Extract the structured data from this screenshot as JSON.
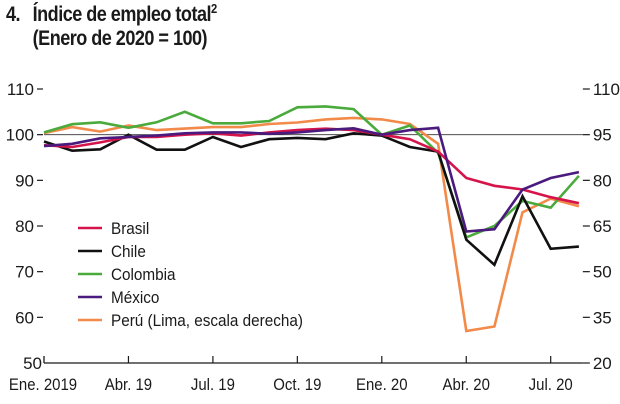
{
  "header": {
    "number": "4.",
    "title": "Índice de empleo total",
    "superscript": "2",
    "subtitle": "(Enero de 2020 = 100)"
  },
  "chart_data": {
    "type": "line",
    "title": "Índice de empleo total",
    "subtitle": "(Enero de 2020 = 100)",
    "xlabel": "",
    "ylabel": "",
    "x": [
      "2019-01",
      "2019-02",
      "2019-03",
      "2019-04",
      "2019-05",
      "2019-06",
      "2019-07",
      "2019-08",
      "2019-09",
      "2019-10",
      "2019-11",
      "2019-12",
      "2020-01",
      "2020-02",
      "2020-03",
      "2020-04",
      "2020-05",
      "2020-06",
      "2020-07",
      "2020-08"
    ],
    "x_tick_labels": [
      "Ene. 2019",
      "Abr. 19",
      "Jul. 19",
      "Oct. 19",
      "Ene. 20",
      "Abr. 20",
      "Jul. 20"
    ],
    "x_tick_indices": [
      0,
      3,
      6,
      9,
      12,
      15,
      18
    ],
    "y_left": {
      "range": [
        50,
        110
      ],
      "ticks": [
        50,
        60,
        70,
        80,
        90,
        100,
        110
      ]
    },
    "y_right": {
      "range": [
        20,
        110
      ],
      "ticks": [
        20,
        35,
        50,
        65,
        80,
        95,
        110
      ],
      "label": "escala derecha"
    },
    "reference_line": {
      "left_value": 100,
      "right_value": 95
    },
    "grid": false,
    "legend_position": "lower-left",
    "series": [
      {
        "name": "Brasil",
        "color": "#d4144a",
        "axis": "left",
        "values": [
          97.7,
          97.3,
          98.3,
          99.5,
          99.5,
          100.0,
          100.3,
          99.8,
          100.5,
          101.0,
          101.3,
          101.0,
          100.0,
          99.0,
          96.3,
          90.5,
          88.8,
          88.0,
          86.3,
          85.0
        ]
      },
      {
        "name": "Chile",
        "color": "#111111",
        "axis": "left",
        "values": [
          98.5,
          96.5,
          96.8,
          100.0,
          96.7,
          96.7,
          99.5,
          97.3,
          99.0,
          99.3,
          99.0,
          100.3,
          99.8,
          97.3,
          96.3,
          77.0,
          71.5,
          86.5,
          75.0,
          75.5
        ]
      },
      {
        "name": "Colombia",
        "color": "#4aaa3c",
        "axis": "left",
        "values": [
          100.5,
          102.3,
          102.7,
          101.5,
          102.7,
          105.0,
          102.5,
          102.5,
          103.0,
          106.0,
          106.2,
          105.6,
          100.0,
          102.0,
          96.0,
          77.5,
          80.0,
          85.5,
          84.0,
          91.0
        ]
      },
      {
        "name": "México",
        "color": "#4b1a7e",
        "axis": "left",
        "values": [
          97.5,
          98.0,
          99.2,
          99.5,
          99.8,
          100.3,
          100.5,
          100.5,
          100.2,
          100.5,
          101.0,
          101.4,
          100.0,
          101.0,
          101.5,
          78.8,
          79.3,
          88.0,
          90.5,
          91.8
        ]
      },
      {
        "name": "Perú (Lima, escala derecha)",
        "color": "#f28a4a",
        "axis": "right",
        "values": [
          95.5,
          97.5,
          96.0,
          98.0,
          96.5,
          97.0,
          97.5,
          97.5,
          98.5,
          99.0,
          100.0,
          100.5,
          100.0,
          98.5,
          92.0,
          30.5,
          32.0,
          69.5,
          74.0,
          71.5
        ]
      }
    ]
  }
}
